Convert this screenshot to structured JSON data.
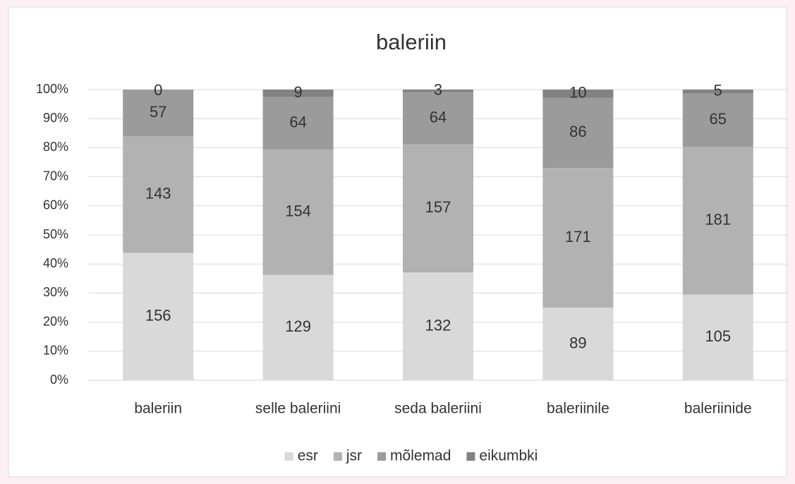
{
  "chart_data": {
    "type": "bar",
    "stacking": "percent",
    "title": "baleriin",
    "categories": [
      "baleriin",
      "selle baleriini",
      "seda baleriini",
      "baleriinile",
      "baleriinide"
    ],
    "series": [
      {
        "name": "esr",
        "color": "#d9d9d9",
        "values": [
          156,
          129,
          132,
          89,
          105
        ]
      },
      {
        "name": "jsr",
        "color": "#b2b2b2",
        "values": [
          143,
          154,
          157,
          171,
          181
        ]
      },
      {
        "name": "mõlemad",
        "color": "#9b9b9b",
        "values": [
          57,
          64,
          64,
          86,
          65
        ]
      },
      {
        "name": "eikumbki",
        "color": "#828282",
        "values": [
          0,
          9,
          3,
          10,
          5
        ]
      }
    ],
    "ylim": [
      0,
      100
    ],
    "yticks": [
      {
        "value": 0,
        "label": "0%"
      },
      {
        "value": 10,
        "label": "10%"
      },
      {
        "value": 20,
        "label": "20%"
      },
      {
        "value": 30,
        "label": "30%"
      },
      {
        "value": 40,
        "label": "40%"
      },
      {
        "value": 50,
        "label": "50%"
      },
      {
        "value": 60,
        "label": "60%"
      },
      {
        "value": 70,
        "label": "70%"
      },
      {
        "value": 80,
        "label": "80%"
      },
      {
        "value": 90,
        "label": "90%"
      },
      {
        "value": 100,
        "label": "100%"
      }
    ],
    "grid": true,
    "legend": "bottom"
  }
}
